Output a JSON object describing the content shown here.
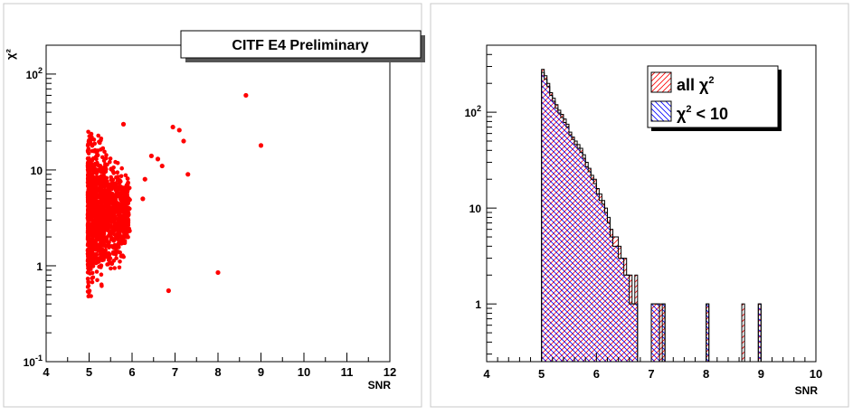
{
  "chart_data": [
    {
      "type": "scatter",
      "title": "CITF E4 Preliminary",
      "xlabel": "SNR",
      "ylabel": "χ²",
      "xlim": [
        4,
        12
      ],
      "ylim": [
        0.1,
        200
      ],
      "yscale": "log",
      "x_ticks": [
        "4",
        "5",
        "6",
        "7",
        "8",
        "9",
        "10",
        "11",
        "12"
      ],
      "y_ticks": [
        {
          "value": 0.1,
          "base": "10",
          "exp": "-1"
        },
        {
          "value": 1,
          "base": "1",
          "exp": ""
        },
        {
          "value": 10,
          "base": "10",
          "exp": ""
        },
        {
          "value": 100,
          "base": "10",
          "exp": "2"
        }
      ],
      "marker_color": "#ff0000",
      "grid": false,
      "outliers": [
        {
          "x": 8.65,
          "y": 60
        },
        {
          "x": 9.0,
          "y": 18
        },
        {
          "x": 8.0,
          "y": 0.85
        },
        {
          "x": 6.85,
          "y": 0.55
        },
        {
          "x": 6.95,
          "y": 28
        },
        {
          "x": 7.1,
          "y": 26
        },
        {
          "x": 7.2,
          "y": 20
        },
        {
          "x": 6.45,
          "y": 14
        },
        {
          "x": 6.6,
          "y": 13
        },
        {
          "x": 5.8,
          "y": 30
        },
        {
          "x": 6.3,
          "y": 8
        },
        {
          "x": 6.25,
          "y": 5
        },
        {
          "x": 6.7,
          "y": 11
        },
        {
          "x": 7.3,
          "y": 9
        }
      ],
      "cluster": {
        "x_min": 4.97,
        "x_max": 5.95,
        "y_min": 0.1,
        "y_max": 25,
        "n_points": 1400
      }
    },
    {
      "type": "histogram",
      "xlabel": "SNR",
      "ylabel": "",
      "xlim": [
        4,
        10
      ],
      "ylim": [
        0.25,
        500
      ],
      "yscale": "log",
      "x_ticks": [
        "4",
        "5",
        "6",
        "7",
        "8",
        "9",
        "10"
      ],
      "y_ticks": [
        {
          "value": 1,
          "base": "1",
          "exp": ""
        },
        {
          "value": 10,
          "base": "10",
          "exp": ""
        },
        {
          "value": 100,
          "base": "10",
          "exp": "2"
        }
      ],
      "bin_start": 5.0,
      "bin_width": 0.05,
      "series": [
        {
          "name_base": "all χ",
          "name_exp": "2",
          "color": "#ff0000",
          "hatch": "diagonal",
          "values": [
            280,
            240,
            200,
            160,
            140,
            120,
            105,
            95,
            85,
            75,
            62,
            55,
            50,
            46,
            42,
            36,
            30,
            26,
            22,
            20,
            16,
            14,
            12,
            10,
            8,
            6,
            5,
            5,
            4,
            3,
            3,
            2,
            2,
            1,
            2,
            0,
            0,
            0,
            0,
            0,
            1,
            1,
            1,
            1,
            1,
            0,
            0,
            0,
            0,
            0,
            0,
            0,
            0,
            0,
            0,
            0,
            0,
            0,
            0,
            0,
            1,
            0,
            0,
            0,
            0,
            0,
            0,
            0,
            0,
            0,
            0,
            0,
            0,
            1,
            0,
            0,
            0,
            0,
            0,
            1
          ]
        },
        {
          "name_base": "χ",
          "name_exp": "2",
          "name_suffix": " < 10",
          "color": "#0000ff",
          "hatch": "cross",
          "values": [
            260,
            220,
            185,
            150,
            130,
            110,
            98,
            88,
            78,
            70,
            58,
            52,
            46,
            42,
            38,
            33,
            27,
            24,
            20,
            18,
            14,
            12,
            11,
            9,
            7,
            5,
            4,
            4,
            3,
            3,
            2,
            2,
            1,
            1,
            1,
            0,
            0,
            0,
            0,
            0,
            1,
            1,
            1,
            0,
            1,
            0,
            0,
            0,
            0,
            0,
            0,
            0,
            0,
            0,
            0,
            0,
            0,
            0,
            0,
            0,
            1,
            0,
            0,
            0,
            0,
            0,
            0,
            0,
            0,
            0,
            0,
            0,
            0,
            0,
            0,
            0,
            0,
            0,
            0,
            1
          ]
        }
      ],
      "legend_position": "top-right",
      "grid": false
    }
  ]
}
